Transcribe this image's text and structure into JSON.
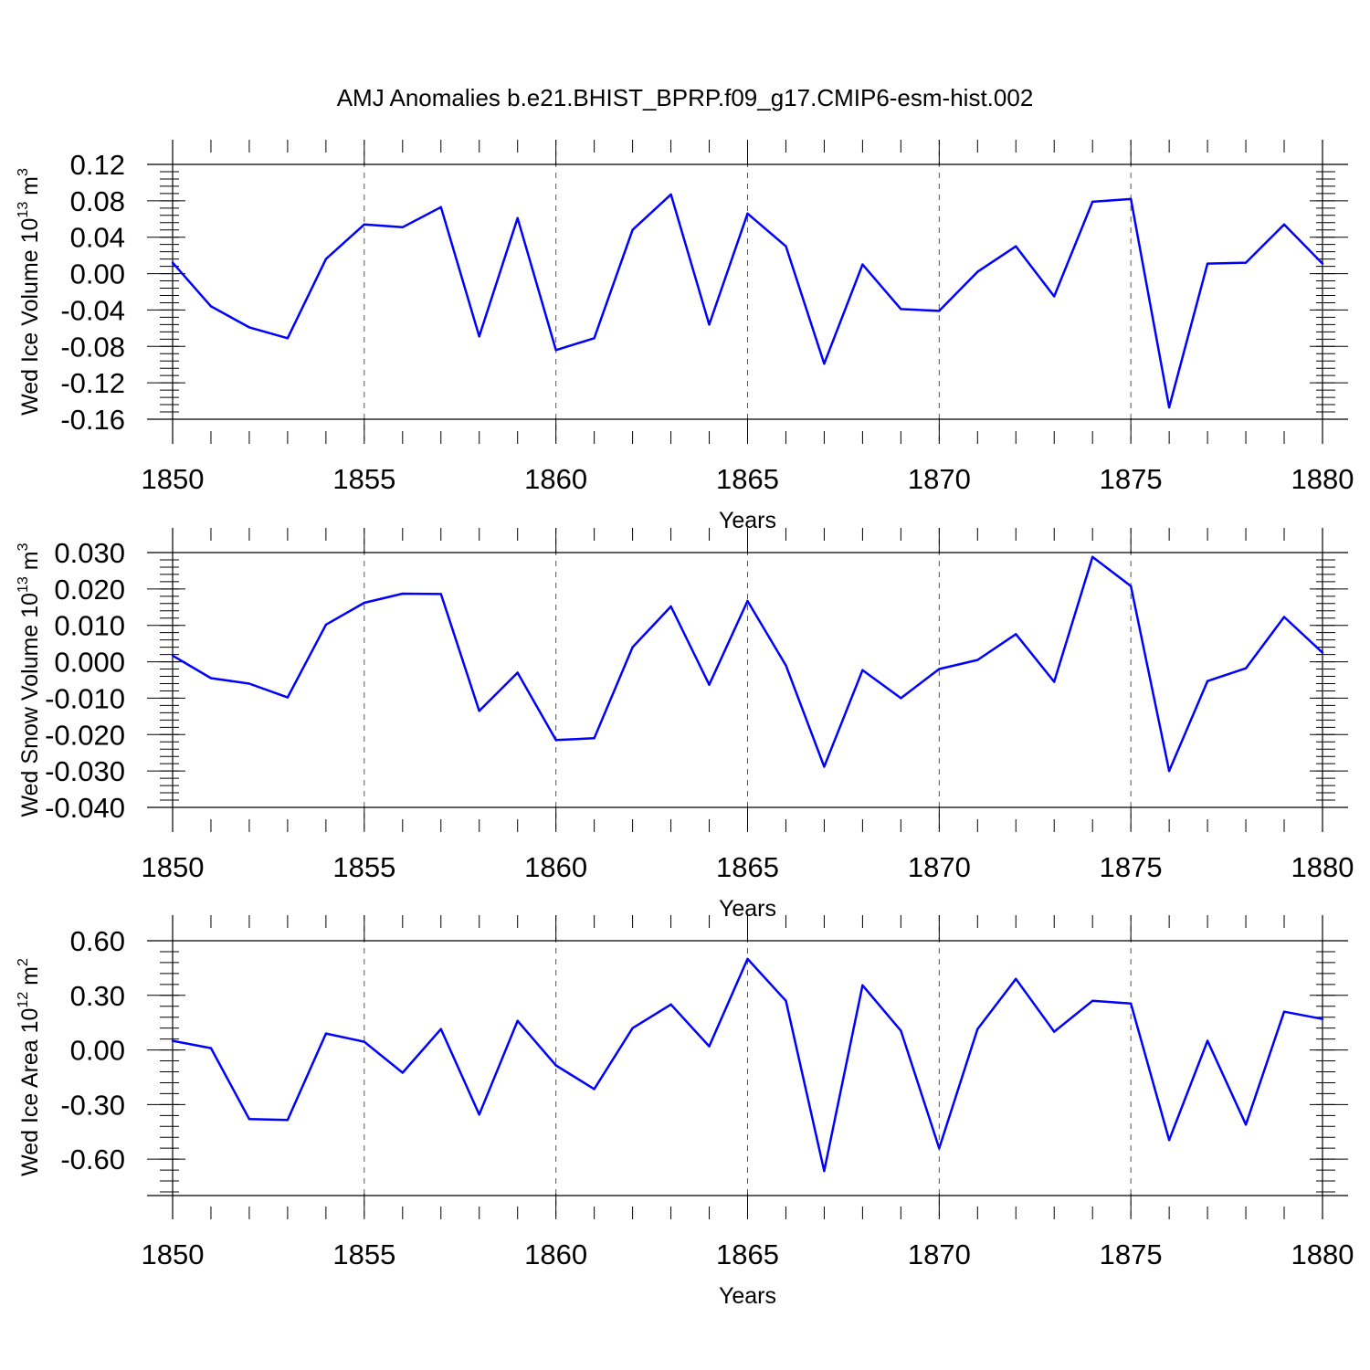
{
  "title": "AMJ Anomalies b.e21.BHIST_BPRP.f09_g17.CMIP6-esm-hist.002",
  "colors": {
    "series": "#0000ff",
    "axes": "#000000",
    "grid": "#555555"
  },
  "chart_data": [
    {
      "type": "line",
      "ylabel": "Wed Ice Volume 10",
      "ylabel_exp": "13",
      "ylabel_unit": " m",
      "ylabel_unit_exp": "3",
      "xlabel": "Years",
      "xlim": [
        1850,
        1880
      ],
      "ylim": [
        -0.16,
        0.12
      ],
      "xticks": [
        1850,
        1855,
        1860,
        1865,
        1870,
        1875,
        1880
      ],
      "xtick_labels": [
        "1850",
        "1855",
        "1860",
        "1865",
        "1870",
        "1875",
        "1880"
      ],
      "yticks": [
        0.12,
        0.08,
        0.04,
        0.0,
        -0.04,
        -0.08,
        -0.12,
        -0.16
      ],
      "ytick_labels": [
        "0.12",
        "0.08",
        "0.04",
        "0.00",
        "-0.04",
        "-0.08",
        "-0.12",
        "-0.16"
      ],
      "x": [
        1850,
        1851,
        1852,
        1853,
        1854,
        1855,
        1856,
        1857,
        1858,
        1859,
        1860,
        1861,
        1862,
        1863,
        1864,
        1865,
        1866,
        1867,
        1868,
        1869,
        1870,
        1871,
        1872,
        1873,
        1874,
        1875,
        1876,
        1877,
        1878,
        1879,
        1880
      ],
      "values": [
        0.012,
        -0.036,
        -0.059,
        -0.071,
        0.016,
        0.054,
        0.051,
        0.073,
        -0.069,
        0.061,
        -0.084,
        -0.071,
        0.048,
        0.087,
        -0.056,
        0.066,
        0.03,
        -0.099,
        0.01,
        -0.039,
        -0.041,
        0.002,
        0.03,
        -0.025,
        0.079,
        0.082,
        -0.147,
        0.011,
        0.012,
        0.054,
        0.011
      ]
    },
    {
      "type": "line",
      "ylabel": "Wed Snow Volume 10",
      "ylabel_exp": "13",
      "ylabel_unit": " m",
      "ylabel_unit_exp": "3",
      "xlabel": "Years",
      "xlim": [
        1850,
        1880
      ],
      "ylim": [
        -0.04,
        0.03
      ],
      "xticks": [
        1850,
        1855,
        1860,
        1865,
        1870,
        1875,
        1880
      ],
      "xtick_labels": [
        "1850",
        "1855",
        "1860",
        "1865",
        "1870",
        "1875",
        "1880"
      ],
      "yticks": [
        0.03,
        0.02,
        0.01,
        0.0,
        -0.01,
        -0.02,
        -0.03,
        -0.04
      ],
      "ytick_labels": [
        "0.030",
        "0.020",
        "0.010",
        "0.000",
        "-0.010",
        "-0.020",
        "-0.030",
        "-0.040"
      ],
      "x": [
        1850,
        1851,
        1852,
        1853,
        1854,
        1855,
        1856,
        1857,
        1858,
        1859,
        1860,
        1861,
        1862,
        1863,
        1864,
        1865,
        1866,
        1867,
        1868,
        1869,
        1870,
        1871,
        1872,
        1873,
        1874,
        1875,
        1876,
        1877,
        1878,
        1879,
        1880
      ],
      "values": [
        0.0017,
        -0.0045,
        -0.006,
        -0.0098,
        0.0102,
        0.0162,
        0.0187,
        0.0186,
        -0.0135,
        -0.003,
        -0.0215,
        -0.021,
        0.004,
        0.0152,
        -0.0063,
        0.0167,
        -0.001,
        -0.0288,
        -0.0023,
        -0.01,
        -0.002,
        0.0005,
        0.0076,
        -0.0055,
        0.0288,
        0.0208,
        -0.03,
        -0.0053,
        -0.0018,
        0.0123,
        0.0025
      ]
    },
    {
      "type": "line",
      "ylabel": "Wed Ice Area 10",
      "ylabel_exp": "12",
      "ylabel_unit": " m",
      "ylabel_unit_exp": "2",
      "xlabel": "Years",
      "xlim": [
        1850,
        1880
      ],
      "ylim": [
        -0.8,
        0.6
      ],
      "xticks": [
        1850,
        1855,
        1860,
        1865,
        1870,
        1875,
        1880
      ],
      "xtick_labels": [
        "1850",
        "1855",
        "1860",
        "1865",
        "1870",
        "1875",
        "1880"
      ],
      "yticks": [
        0.6,
        0.3,
        0.0,
        -0.3,
        -0.6
      ],
      "ytick_labels": [
        "0.60",
        "0.30",
        "0.00",
        "-0.30",
        "-0.60"
      ],
      "x": [
        1850,
        1851,
        1852,
        1853,
        1854,
        1855,
        1856,
        1857,
        1858,
        1859,
        1860,
        1861,
        1862,
        1863,
        1864,
        1865,
        1866,
        1867,
        1868,
        1869,
        1870,
        1871,
        1872,
        1873,
        1874,
        1875,
        1876,
        1877,
        1878,
        1879,
        1880
      ],
      "values": [
        0.05,
        0.01,
        -0.38,
        -0.385,
        0.09,
        0.045,
        -0.125,
        0.115,
        -0.355,
        0.16,
        -0.085,
        -0.215,
        0.12,
        0.25,
        0.02,
        0.5,
        0.27,
        -0.665,
        0.355,
        0.105,
        -0.54,
        0.115,
        0.39,
        0.1,
        0.27,
        0.255,
        -0.495,
        0.05,
        -0.41,
        0.21,
        0.17
      ]
    }
  ]
}
